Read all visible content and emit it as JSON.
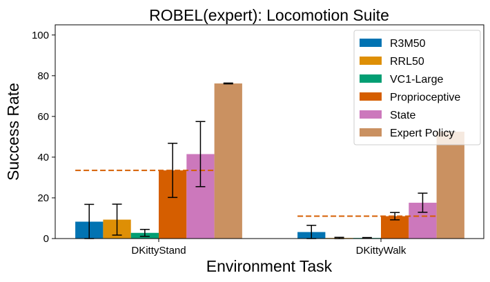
{
  "chart_data": {
    "type": "bar",
    "title": "ROBEL(expert): Locomotion Suite",
    "xlabel": "Environment Task",
    "ylabel": "Success Rate",
    "ylim": [
      0,
      105
    ],
    "yticks": [
      0,
      20,
      40,
      60,
      80,
      100
    ],
    "categories": [
      "DKittyStand",
      "DKittyWalk"
    ],
    "grid": false,
    "legend_position": "top-right",
    "series": [
      {
        "name": "R3M50",
        "color": "#0173b2",
        "values": [
          8.3,
          3.2
        ],
        "errors": [
          8.5,
          3.3
        ]
      },
      {
        "name": "RRL50",
        "color": "#de8f05",
        "values": [
          9.3,
          0.3
        ],
        "errors": [
          7.6,
          0.3
        ]
      },
      {
        "name": "VC1-Large",
        "color": "#029e73",
        "values": [
          2.8,
          0.3
        ],
        "errors": [
          1.7,
          0.2
        ]
      },
      {
        "name": "Proprioceptive",
        "color": "#d55e00",
        "values": [
          33.5,
          11.0
        ],
        "errors": [
          13.3,
          1.8
        ]
      },
      {
        "name": "State",
        "color": "#cc78bc",
        "values": [
          41.5,
          17.6
        ],
        "errors": [
          16.0,
          4.7
        ]
      },
      {
        "name": "Expert Policy",
        "color": "#ca9161",
        "values": [
          76.2,
          52.5
        ],
        "errors": [
          0.2,
          0.0
        ]
      }
    ],
    "reference_lines": [
      {
        "series": "Proprioceptive",
        "values": [
          33.5,
          11.0
        ],
        "style": "dashed",
        "color": "#d55e00"
      }
    ]
  }
}
